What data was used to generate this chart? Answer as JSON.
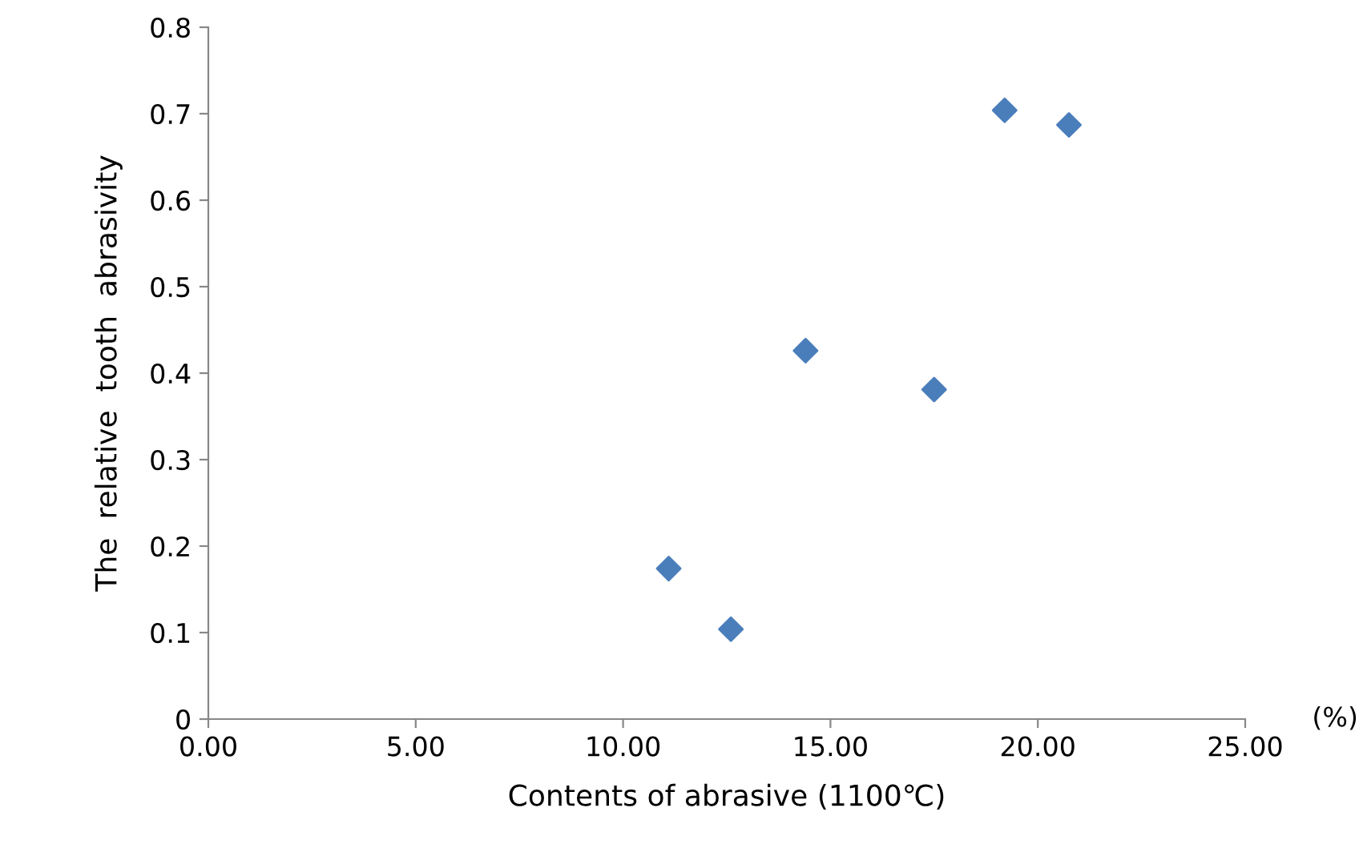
{
  "chart_data": {
    "type": "scatter",
    "xlabel": "Contents of abrasive (1100℃)",
    "ylabel": "The  relative  tooth  abrasivity",
    "x": [
      11.1,
      12.6,
      14.4,
      17.5,
      19.2,
      20.75
    ],
    "series": [
      {
        "color": "#4a7ebb",
        "values": [
          0.174,
          0.104,
          0.426,
          0.381,
          0.704,
          0.687
        ]
      }
    ],
    "xlim": [
      0,
      25
    ],
    "xticks": [
      {
        "value": 0,
        "label": "0.00"
      },
      {
        "value": 5,
        "label": "5.00"
      },
      {
        "value": 10,
        "label": "10.00"
      },
      {
        "value": 15,
        "label": "15.00"
      },
      {
        "value": 20,
        "label": "20.00"
      },
      {
        "value": 25,
        "label": "25.00"
      }
    ],
    "ylim": [
      0,
      0.8
    ],
    "yticks": [
      {
        "value": 0,
        "label": "0"
      },
      0.1,
      0.2,
      0.3,
      0.4,
      0.5,
      0.6,
      0.7,
      0.8
    ],
    "annotations": [
      "(%)"
    ],
    "marker": "diamond",
    "grid": false,
    "legend": false
  }
}
